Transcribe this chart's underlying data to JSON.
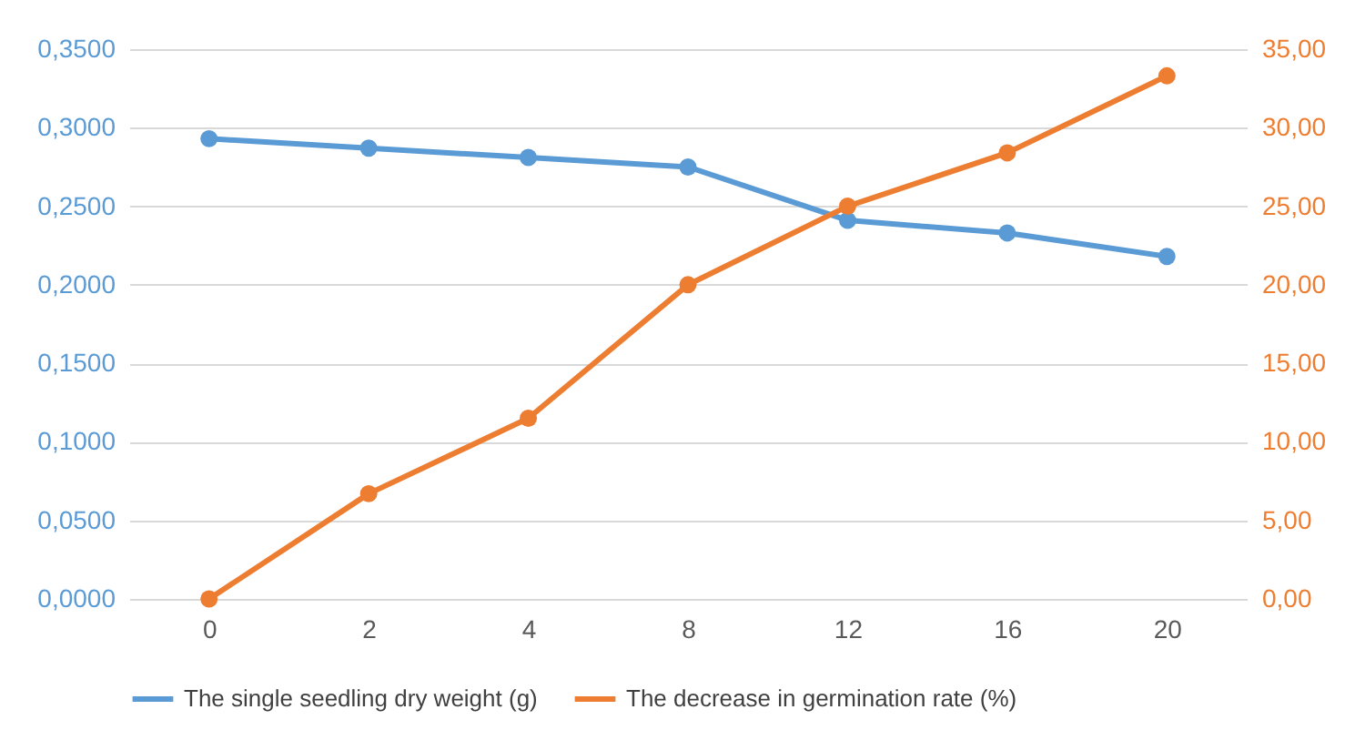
{
  "chart_data": {
    "type": "line",
    "categories": [
      "0",
      "2",
      "4",
      "8",
      "12",
      "16",
      "20"
    ],
    "series": [
      {
        "name": "The single seedling  dry weight (g)",
        "color": "#5b9bd5",
        "values": [
          0.293,
          0.287,
          0.281,
          0.275,
          0.241,
          0.233,
          0.218
        ]
      },
      {
        "name": "The decrease in germination rate (%)",
        "color": "#ed7d31",
        "axis": "y2",
        "values": [
          0,
          6.7,
          11.5,
          20.0,
          25.0,
          28.4,
          33.3
        ]
      }
    ],
    "ylim": [
      0,
      0.35
    ],
    "yticks": [
      {
        "value": 0,
        "label": "0,0000"
      },
      {
        "value": 0.05,
        "label": "0,0500"
      },
      {
        "value": 0.1,
        "label": "0,1000"
      },
      {
        "value": 0.15,
        "label": "0,1500"
      },
      {
        "value": 0.2,
        "label": "0,2000"
      },
      {
        "value": 0.25,
        "label": "0,2500"
      },
      {
        "value": 0.3,
        "label": "0,3000"
      },
      {
        "value": 0.35,
        "label": "0,3500"
      }
    ],
    "y2lim": [
      0,
      35
    ],
    "y2ticks": [
      {
        "value": 0,
        "label": "0,00"
      },
      {
        "value": 5,
        "label": "5,00"
      },
      {
        "value": 10,
        "label": "10,00"
      },
      {
        "value": 15,
        "label": "15,00"
      },
      {
        "value": 20,
        "label": "20,00"
      },
      {
        "value": 25,
        "label": "25,00"
      },
      {
        "value": 30,
        "label": "30,00"
      },
      {
        "value": 35,
        "label": "35,00"
      }
    ],
    "grid": "y",
    "legend": "bottom",
    "marker": "circle",
    "line_style": "solid"
  }
}
